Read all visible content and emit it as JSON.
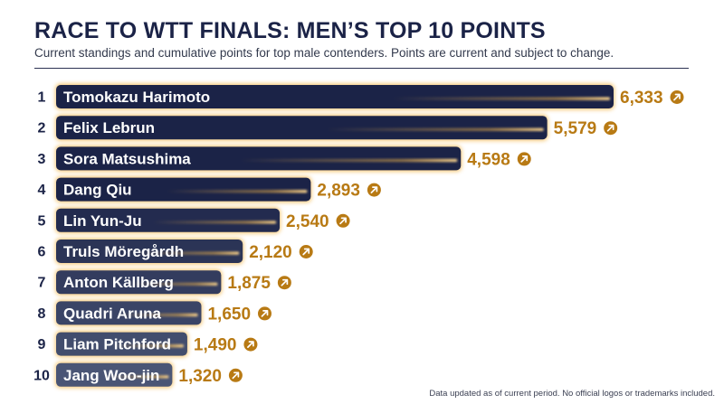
{
  "header": {
    "title": "RACE TO WTT FINALS: MEN’S TOP 10 POINTS",
    "subtitle": "Current standings and cumulative points for top male contenders. Points are current and subject to change."
  },
  "footer": {
    "note": "Data updated as of current period. No official logos or trademarks included."
  },
  "colors": {
    "title": "#1b2347",
    "bar_dark": "#1b2347",
    "bar_light": "#4a5575",
    "accent": "#b87a14",
    "glow": "#f3b64a"
  },
  "chart_data": {
    "type": "bar",
    "orientation": "horizontal",
    "ranks": [
      "1",
      "2",
      "3",
      "4",
      "5",
      "6",
      "7",
      "8",
      "9",
      "10"
    ],
    "categories": [
      "Tomokazu Harimoto",
      "Felix Lebrun",
      "Sora Matsushima",
      "Dang Qiu",
      "Lin Yun-Ju",
      "Truls Möregårdh",
      "Anton Källberg",
      "Quadri Aruna",
      "Liam Pitchford",
      "Jang Woo-jin"
    ],
    "values": [
      6333,
      5579,
      4598,
      2893,
      2540,
      2120,
      1875,
      1650,
      1490,
      1320
    ],
    "value_labels": [
      "6,333",
      "5,579",
      "4,598",
      "2,893",
      "2,540",
      "2,120",
      "1,875",
      "1,650",
      "1,490",
      "1,320"
    ],
    "trend_icon": "arrow-up-right-icon",
    "xlim": [
      0,
      6333
    ],
    "grid": false,
    "legend": "none"
  }
}
